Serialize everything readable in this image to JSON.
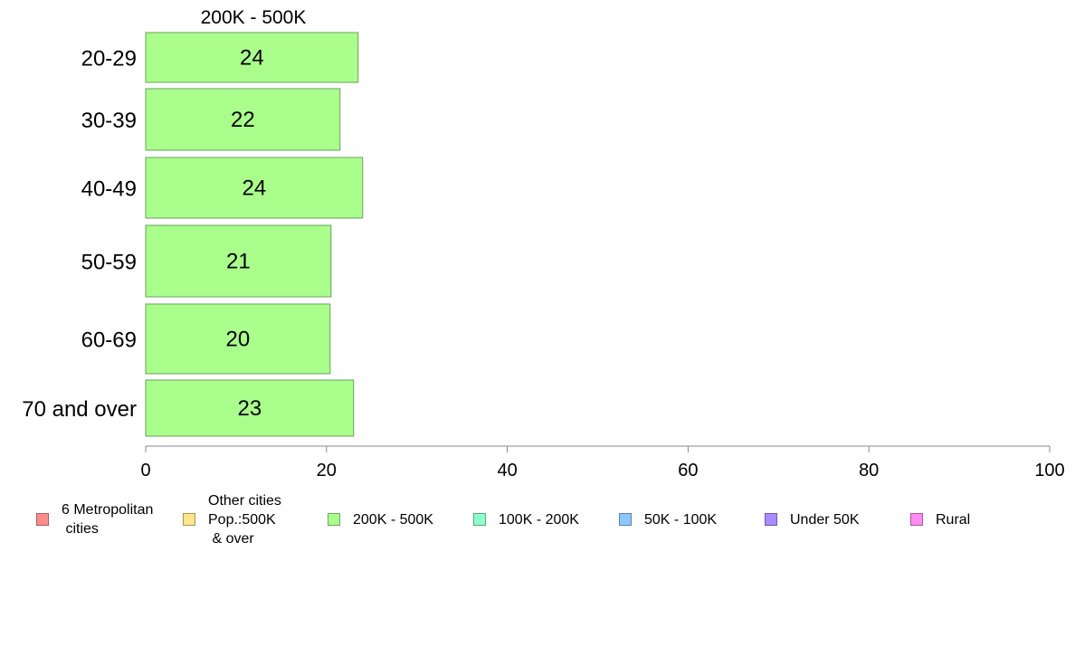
{
  "chart_data": {
    "type": "bar",
    "orientation": "horizontal",
    "title": "200K - 500K",
    "categories": [
      "20-29",
      "30-39",
      "40-49",
      "50-59",
      "60-69",
      "70 and over"
    ],
    "values": [
      23.5,
      21.5,
      24,
      20.5,
      20.4,
      23
    ],
    "data_labels": [
      "24",
      "22",
      "24",
      "21",
      "20",
      "23"
    ],
    "xlim": [
      0,
      100
    ],
    "x_ticks": [
      "0",
      "20",
      "40",
      "60",
      "80",
      "100"
    ],
    "xlabel": "",
    "ylabel": "",
    "grid": false,
    "bar_color": "#aaff8c",
    "legend_placement": "bottom",
    "legend": [
      {
        "label": "6 Metropolitan\n cities",
        "color": "#ff8c8c"
      },
      {
        "label": "Other cities\nPop.:500K\n & over",
        "color": "#ffe68c"
      },
      {
        "label": "200K - 500K",
        "color": "#aaff8c"
      },
      {
        "label": "100K - 200K",
        "color": "#8cffcc"
      },
      {
        "label": "50K - 100K",
        "color": "#8cc8ff"
      },
      {
        "label": "Under 50K",
        "color": "#aa8cff"
      },
      {
        "label": "Rural",
        "color": "#ff8cf0"
      }
    ]
  }
}
